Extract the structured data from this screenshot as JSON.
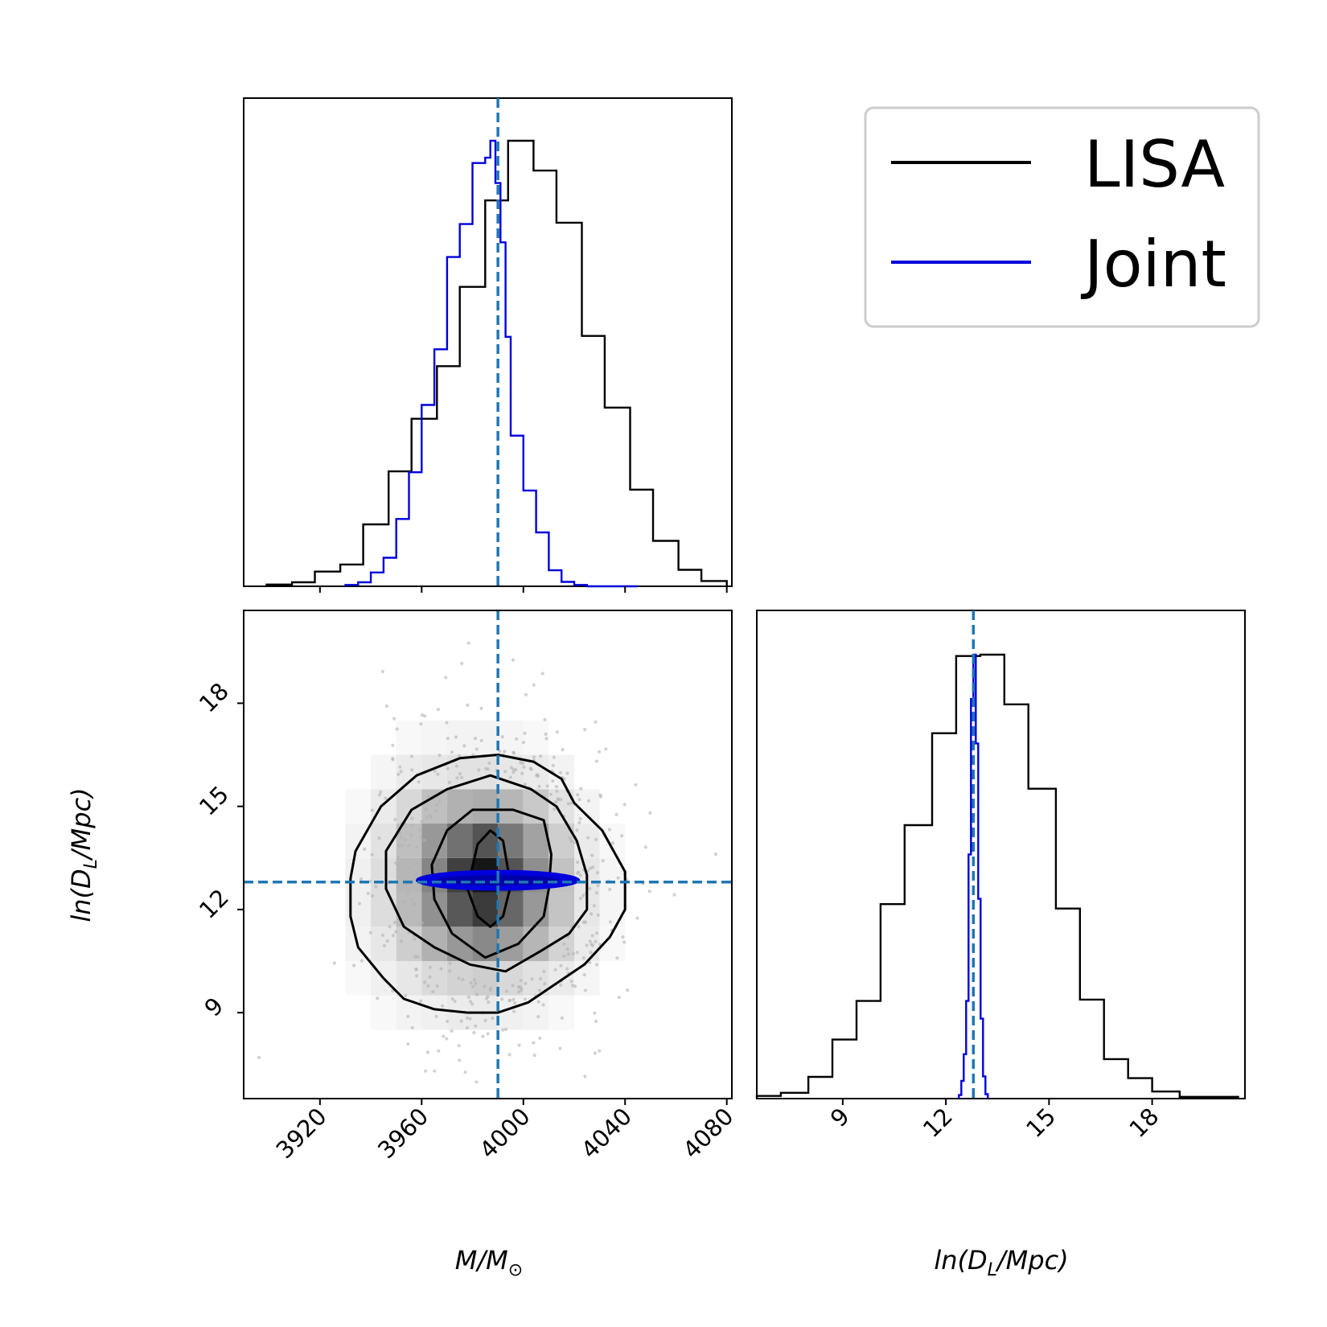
{
  "chart_data": [
    {
      "panel": "mass-marginal",
      "type": "histogram",
      "xlim": [
        3890,
        4082
      ],
      "truth_x": 3990,
      "series": [
        {
          "name": "LISA",
          "color": "#000000",
          "bin_edges": [
            3899,
            3909,
            3918,
            3928,
            3937,
            3947,
            3956,
            3966,
            3975,
            3985,
            3994,
            4004,
            4013,
            4023,
            4032,
            4042,
            4051,
            4061,
            4070,
            4080
          ],
          "heights": [
            0.4,
            0.9,
            3.3,
            4.9,
            13.9,
            25.8,
            37.6,
            49.4,
            67.2,
            86.6,
            100.0,
            93.3,
            81.6,
            56.2,
            40.1,
            21.7,
            10.2,
            3.7,
            1.2
          ]
        },
        {
          "name": "Joint",
          "color": "#0000dd",
          "bin_edges": [
            3930,
            3935,
            3940,
            3945,
            3950,
            3955,
            3960,
            3965,
            3970,
            3975,
            3980,
            3985,
            3987,
            3989,
            3991,
            3993,
            3995,
            4000,
            4005,
            4010,
            4015,
            4020,
            4025,
            4030,
            4035,
            4040,
            4045
          ],
          "heights": [
            0.3,
            0.9,
            3.1,
            6.4,
            15.1,
            25.6,
            40.7,
            53.2,
            73.9,
            81.3,
            95.0,
            96.2,
            100.0,
            90.5,
            77.2,
            56.0,
            33.8,
            21.5,
            12.1,
            3.6,
            1.0,
            0.3,
            0.0,
            0.0,
            0.0,
            0.0
          ]
        }
      ],
      "xticks": [
        "3920",
        "3960",
        "4000",
        "4040",
        "4080"
      ]
    },
    {
      "panel": "joint-2d",
      "type": "contour",
      "xlim": [
        3890,
        4082
      ],
      "ylim": [
        6.5,
        20.7
      ],
      "truth_x": 3990,
      "truth_y": 12.8,
      "xlabel": "M/M",
      "xlabel_sub": "⊙",
      "ylabel": "ln(D",
      "ylabel_sub": "L",
      "ylabel_end": "/Mpc)",
      "xticks": [
        "3920",
        "3960",
        "4000",
        "4040",
        "4080"
      ],
      "yticks": [
        "9",
        "12",
        "15",
        "18"
      ],
      "lisa_contours": [
        [
          [
            3934,
            13.7
          ],
          [
            3944,
            15.0
          ],
          [
            3958,
            15.9
          ],
          [
            3975,
            16.4
          ],
          [
            3990,
            16.5
          ],
          [
            4004,
            16.3
          ],
          [
            4015,
            15.8
          ],
          [
            4020,
            15.1
          ],
          [
            4031,
            14.3
          ],
          [
            4040,
            13.1
          ],
          [
            4040,
            12.0
          ],
          [
            4034,
            11.2
          ],
          [
            4024,
            10.4
          ],
          [
            4012,
            9.8
          ],
          [
            4002,
            9.3
          ],
          [
            3990,
            9.0
          ],
          [
            3978,
            9.0
          ],
          [
            3965,
            9.1
          ],
          [
            3953,
            9.4
          ],
          [
            3945,
            10.0
          ],
          [
            3935,
            10.9
          ],
          [
            3932,
            11.8
          ],
          [
            3932,
            12.9
          ]
        ],
        [
          [
            3946,
            13.7
          ],
          [
            3956,
            14.9
          ],
          [
            3970,
            15.5
          ],
          [
            3987,
            15.9
          ],
          [
            4003,
            15.5
          ],
          [
            4013,
            15.0
          ],
          [
            4021,
            14.0
          ],
          [
            4025,
            13.0
          ],
          [
            4025,
            12.0
          ],
          [
            4018,
            11.3
          ],
          [
            4007,
            10.8
          ],
          [
            3993,
            10.2
          ],
          [
            3979,
            10.4
          ],
          [
            3965,
            10.9
          ],
          [
            3953,
            11.5
          ],
          [
            3946,
            12.6
          ]
        ],
        [
          [
            3964,
            13.3
          ],
          [
            3970,
            14.3
          ],
          [
            3980,
            14.9
          ],
          [
            3996,
            14.9
          ],
          [
            4008,
            14.6
          ],
          [
            4011,
            13.6
          ],
          [
            4010,
            12.6
          ],
          [
            4008,
            11.8
          ],
          [
            3998,
            11.0
          ],
          [
            3985,
            10.6
          ],
          [
            3972,
            11.3
          ],
          [
            3965,
            12.3
          ]
        ],
        [
          [
            3978,
            12.6
          ],
          [
            3982,
            13.9
          ],
          [
            3987,
            14.3
          ],
          [
            3992,
            14.0
          ],
          [
            3995,
            12.7
          ],
          [
            3992,
            11.8
          ],
          [
            3987,
            11.5
          ],
          [
            3982,
            11.8
          ]
        ]
      ],
      "joint_ellipse": {
        "cx": 3990,
        "cy": 12.85,
        "rx": 32,
        "ry": 0.28
      },
      "hist2d": {
        "x_edges": [
          3930,
          3940,
          3950,
          3960,
          3970,
          3980,
          3990,
          4000,
          4010,
          4020,
          4030,
          4040,
          4050
        ],
        "y_edges": [
          8.5,
          9.5,
          10.5,
          11.5,
          12.5,
          13.5,
          14.5,
          15.5,
          16.5,
          17.5
        ],
        "values": [
          [
            0.0,
            0.03,
            0.05,
            0.06,
            0.08,
            0.08,
            0.06,
            0.05,
            0.03,
            0.0,
            0.0,
            0.0
          ],
          [
            0.03,
            0.06,
            0.1,
            0.15,
            0.18,
            0.2,
            0.16,
            0.12,
            0.08,
            0.04,
            0.0,
            0.0
          ],
          [
            0.05,
            0.1,
            0.2,
            0.32,
            0.42,
            0.48,
            0.4,
            0.3,
            0.18,
            0.08,
            0.03,
            0.0
          ],
          [
            0.06,
            0.14,
            0.28,
            0.45,
            0.68,
            0.8,
            0.62,
            0.42,
            0.24,
            0.1,
            0.04,
            0.0
          ],
          [
            0.06,
            0.14,
            0.3,
            0.5,
            0.78,
            0.95,
            0.7,
            0.46,
            0.25,
            0.1,
            0.04,
            0.0
          ],
          [
            0.05,
            0.12,
            0.26,
            0.42,
            0.58,
            0.7,
            0.55,
            0.38,
            0.2,
            0.08,
            0.03,
            0.0
          ],
          [
            0.03,
            0.08,
            0.16,
            0.26,
            0.32,
            0.34,
            0.3,
            0.22,
            0.12,
            0.05,
            0.0,
            0.0
          ],
          [
            0.0,
            0.04,
            0.08,
            0.1,
            0.12,
            0.12,
            0.1,
            0.08,
            0.05,
            0.0,
            0.0,
            0.0
          ],
          [
            0.0,
            0.0,
            0.03,
            0.04,
            0.05,
            0.05,
            0.04,
            0.03,
            0.0,
            0.0,
            0.0,
            0.0
          ]
        ]
      }
    },
    {
      "panel": "distance-marginal",
      "type": "histogram",
      "xlim": [
        6.5,
        20.7
      ],
      "truth_x": 12.8,
      "xlabel": "ln(D",
      "xlabel_sub": "L",
      "xlabel_end": "/Mpc)",
      "xticks": [
        "9",
        "12",
        "15",
        "18"
      ],
      "series": [
        {
          "name": "LISA",
          "color": "#000000",
          "bin_edges": [
            6.5,
            7.2,
            8.0,
            8.7,
            9.4,
            10.1,
            10.8,
            11.6,
            12.3,
            13.0,
            13.7,
            14.4,
            15.2,
            15.9,
            16.6,
            17.3,
            18.0,
            18.8,
            20.5
          ],
          "heights": [
            0.6,
            1.3,
            4.9,
            13.3,
            22.0,
            43.8,
            61.6,
            82.3,
            99.7,
            100.0,
            88.8,
            69.8,
            42.8,
            22.3,
            8.9,
            4.6,
            1.6,
            0.4
          ]
        },
        {
          "name": "Joint",
          "color": "#0000dd",
          "bin_edges": [
            12.38,
            12.45,
            12.52,
            12.59,
            12.66,
            12.73,
            12.8,
            12.87,
            12.94,
            13.01,
            13.08,
            13.15,
            13.22
          ],
          "heights": [
            0.8,
            4.0,
            10.0,
            22.0,
            55.0,
            90.0,
            100.0,
            80.0,
            45.0,
            18.0,
            5.0,
            1.0
          ]
        }
      ]
    }
  ],
  "legend": {
    "entries": [
      {
        "label": "LISA",
        "color": "#000000"
      },
      {
        "label": "Joint",
        "color": "#0000dd"
      }
    ]
  },
  "colors": {
    "truth_line": "#1f77b4",
    "scatter": "#b3b3b3"
  }
}
